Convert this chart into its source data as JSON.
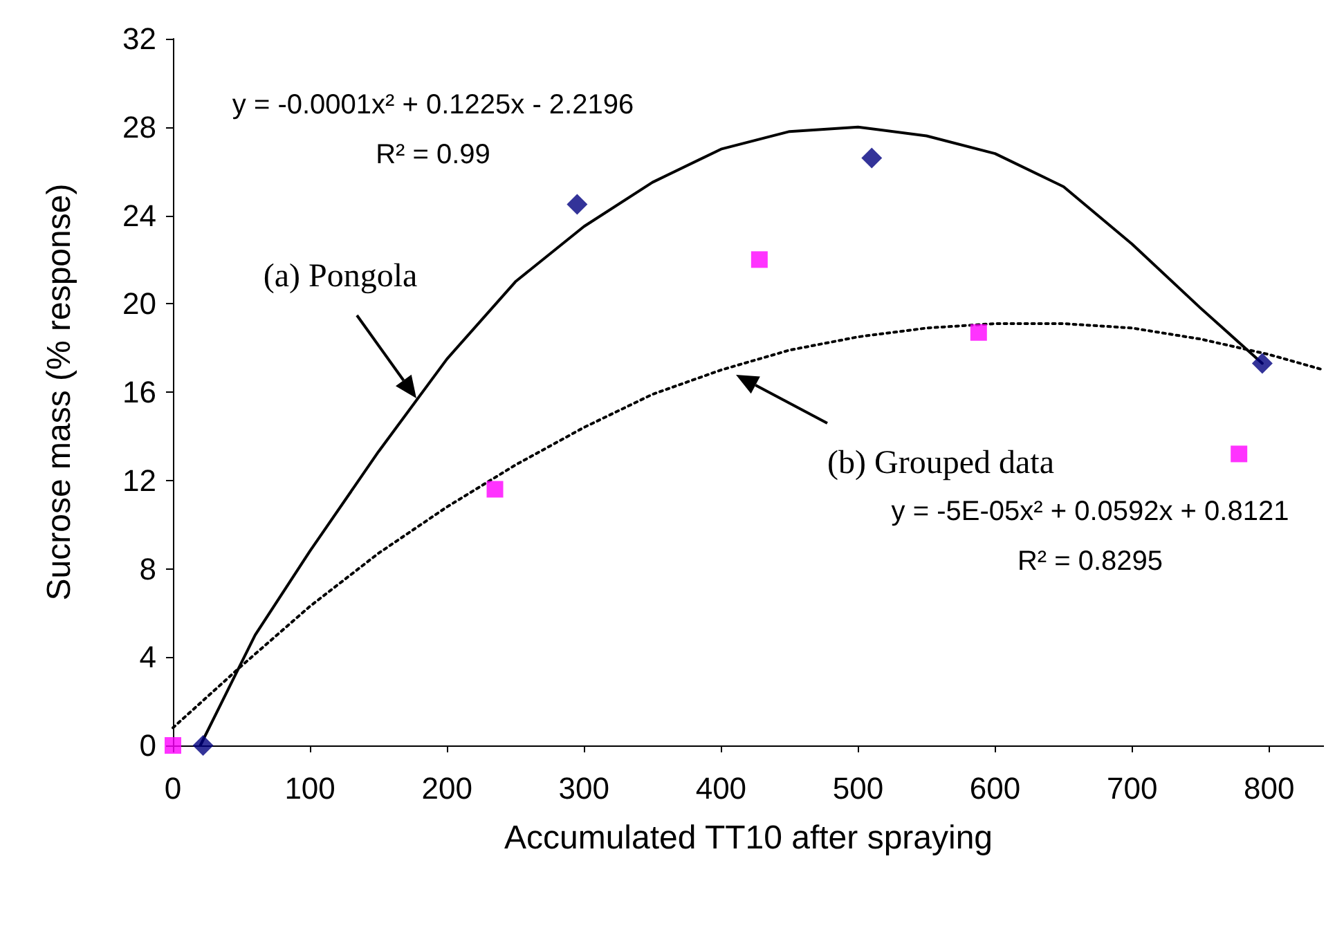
{
  "chart_data": {
    "type": "scatter",
    "xlabel": "Accumulated TT10 after spraying",
    "ylabel": "Sucrose mass (% response)",
    "xlim": [
      0,
      840
    ],
    "xticks": [
      0,
      100,
      200,
      300,
      400,
      500,
      600,
      700,
      800
    ],
    "ylim": [
      0,
      32
    ],
    "yticks": [
      0,
      4,
      8,
      12,
      16,
      20,
      24,
      28,
      32
    ],
    "grid": false,
    "series": [
      {
        "type": "line",
        "color": "#000000",
        "line_style": "solid",
        "marker": "none",
        "x": [
          20,
          40,
          60,
          100,
          150,
          200,
          250,
          300,
          350,
          400,
          450,
          500,
          550,
          600,
          650,
          700,
          750,
          795
        ],
        "values": [
          0,
          2.5,
          5,
          8.8,
          13.3,
          17.5,
          21,
          23.5,
          25.5,
          27,
          27.8,
          28,
          27.6,
          26.8,
          25.3,
          22.7,
          19.8,
          17.3
        ]
      },
      {
        "type": "line",
        "color": "#000000",
        "line_style": "dotted",
        "marker": "none",
        "x": [
          0,
          50,
          100,
          150,
          200,
          250,
          300,
          350,
          400,
          450,
          500,
          550,
          600,
          650,
          700,
          750,
          800,
          840
        ],
        "values": [
          0.8,
          3.6,
          6.3,
          8.7,
          10.8,
          12.7,
          14.4,
          15.9,
          17.0,
          17.9,
          18.5,
          18.9,
          19.1,
          19.1,
          18.9,
          18.4,
          17.7,
          17.0
        ]
      },
      {
        "color": "#000080",
        "marker": "diamond",
        "x": [
          22,
          295,
          510,
          795
        ],
        "values": [
          0,
          24.5,
          26.6,
          17.3
        ]
      },
      {
        "color": "#ff00ff",
        "marker": "square",
        "x": [
          0,
          235,
          428,
          588,
          778
        ],
        "values": [
          0,
          11.6,
          22.0,
          18.7,
          13.2
        ]
      }
    ],
    "annotations": [
      "y = -0.0001x² + 0.1225x - 2.2196\nR² = 0.99",
      "y = -5E-05x² + 0.0592x + 0.8121\nR² = 0.8295",
      "(a) Pongola",
      "(b) Grouped data"
    ]
  }
}
